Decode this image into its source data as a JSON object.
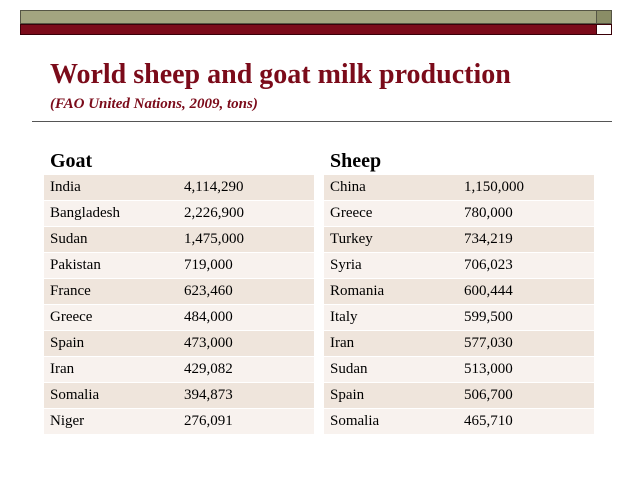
{
  "slide": {
    "title": "World sheep and goat milk production",
    "subtitle": "(FAO United Nations, 2009, tons)"
  },
  "goat": {
    "heading": "Goat",
    "rows": [
      {
        "country": "India",
        "value": "4,114,290"
      },
      {
        "country": "Bangladesh",
        "value": "2,226,900"
      },
      {
        "country": "Sudan",
        "value": "1,475,000"
      },
      {
        "country": "Pakistan",
        "value": "719,000"
      },
      {
        "country": "France",
        "value": "623,460"
      },
      {
        "country": "Greece",
        "value": "484,000"
      },
      {
        "country": "Spain",
        "value": "473,000"
      },
      {
        "country": "Iran",
        "value": "429,082"
      },
      {
        "country": "Somalia",
        "value": "394,873"
      },
      {
        "country": "Niger",
        "value": "276,091"
      }
    ]
  },
  "sheep": {
    "heading": "Sheep",
    "rows": [
      {
        "country": "China",
        "value": "1,150,000"
      },
      {
        "country": "Greece",
        "value": "780,000"
      },
      {
        "country": "Turkey",
        "value": "734,219"
      },
      {
        "country": "Syria",
        "value": "706,023"
      },
      {
        "country": "Romania",
        "value": "600,444"
      },
      {
        "country": "Italy",
        "value": "599,500"
      },
      {
        "country": "Iran",
        "value": "577,030"
      },
      {
        "country": "Sudan",
        "value": "513,000"
      },
      {
        "country": "Spain",
        "value": "506,700"
      },
      {
        "country": "Somalia",
        "value": "465,710"
      }
    ]
  },
  "colors": {
    "title": "#7b0b1a",
    "header_bar_olive": "#a3a580",
    "header_bar_maroon": "#7b0b1a",
    "row_odd": "#efe5dc",
    "row_even": "#f8f2ee"
  }
}
